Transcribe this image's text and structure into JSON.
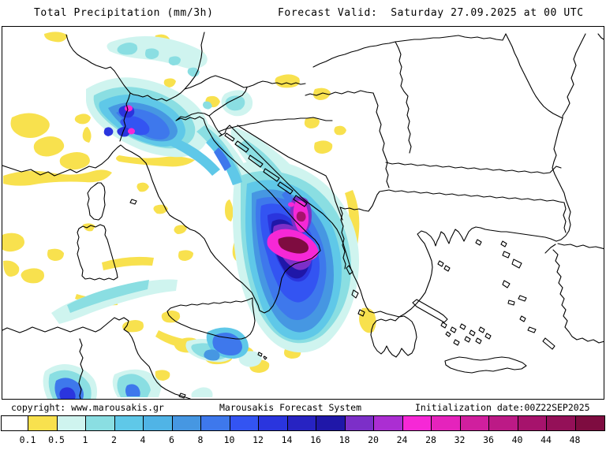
{
  "header": {
    "title": "Total Precipitation (mm/3h)",
    "forecast_valid": "Forecast Valid:  Saturday 27.09.2025 at 00 UTC"
  },
  "footer": {
    "copyright": "copyright: www.marousakis.gr",
    "system_name": "Marousakis Forecast System",
    "init_date": "Initialization date:00Z22SEP2025"
  },
  "legend": {
    "unit": "mm/3h",
    "values": [
      "0.1",
      "0.5",
      "1",
      "2",
      "4",
      "6",
      "8",
      "10",
      "12",
      "14",
      "16",
      "18",
      "20",
      "24",
      "28",
      "32",
      "36",
      "40",
      "44",
      "48"
    ],
    "colors": [
      "#ffffff",
      "#f8e14e",
      "#cff4ef",
      "#8adee2",
      "#5fc8e8",
      "#50b4e6",
      "#4697e2",
      "#3e78ec",
      "#3354f2",
      "#2a35de",
      "#2723c2",
      "#1f17a8",
      "#7c2fc8",
      "#ab2ed2",
      "#f628d6",
      "#e523bc",
      "#d01f9e",
      "#bc1a86",
      "#a6136c",
      "#941058",
      "#7e0c40"
    ],
    "line_color": "#000000"
  }
}
